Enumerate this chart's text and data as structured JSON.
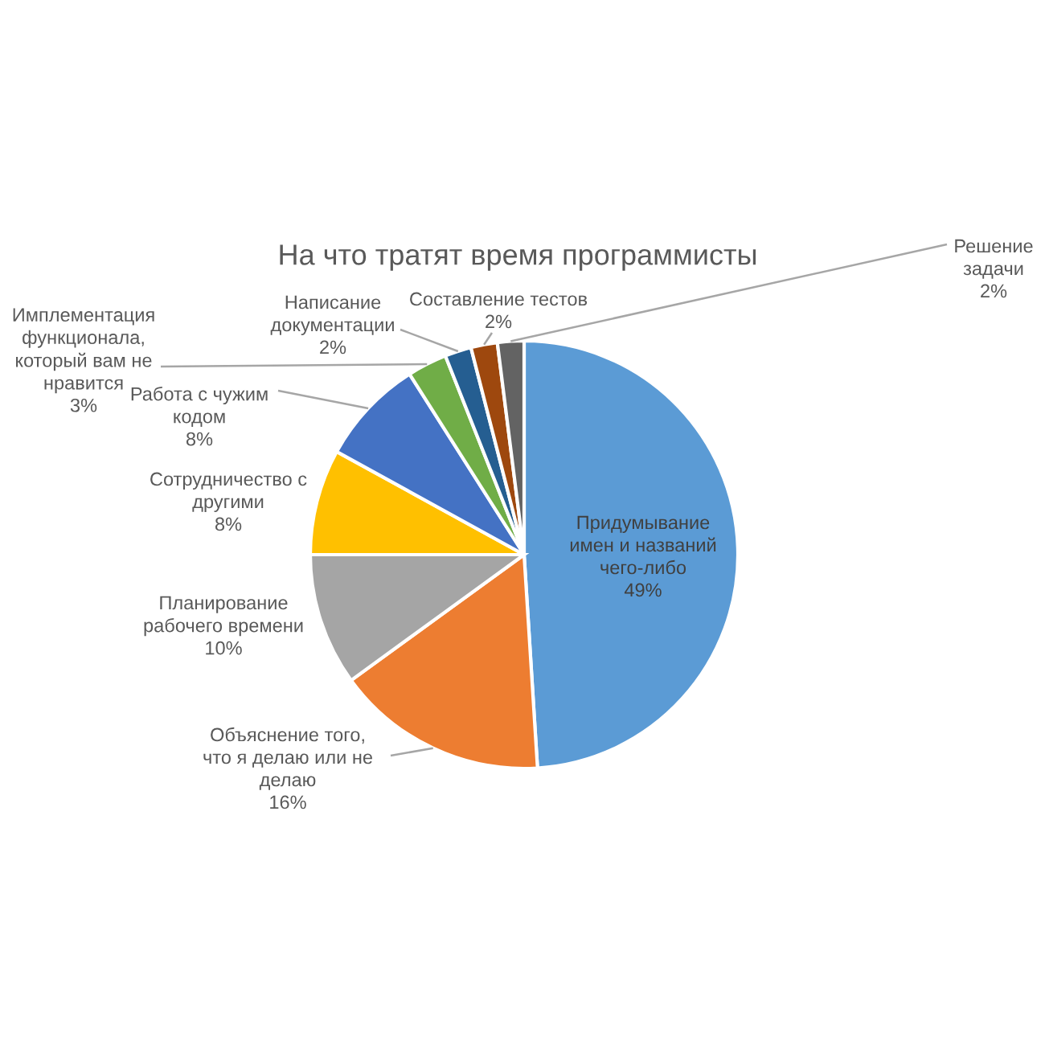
{
  "chart_data": {
    "type": "pie",
    "title": "На что тратят время программисты",
    "categories": [
      "Придумывание\nимен и названий\nчего-либо",
      "Объяснение того,\nчто я делаю или не\nделаю",
      "Планирование\nрабочего времени",
      "Сотрудничество с\nдругими",
      "Работа с чужим\nкодом",
      "Имплементация\nфункционала,\nкоторый вам не\nнравится",
      "Написание\nдокументации",
      "Составление тестов",
      "Решение\nзадачи"
    ],
    "values": [
      49,
      16,
      10,
      8,
      8,
      3,
      2,
      2,
      2
    ],
    "value_labels": [
      "49%",
      "16%",
      "10%",
      "8%",
      "8%",
      "3%",
      "2%",
      "2%",
      "2%"
    ],
    "colors": [
      "#5b9bd5",
      "#ed7d31",
      "#a5a5a5",
      "#ffc000",
      "#4472c4",
      "#70ad47",
      "#255e91",
      "#9e480e",
      "#636363"
    ]
  }
}
